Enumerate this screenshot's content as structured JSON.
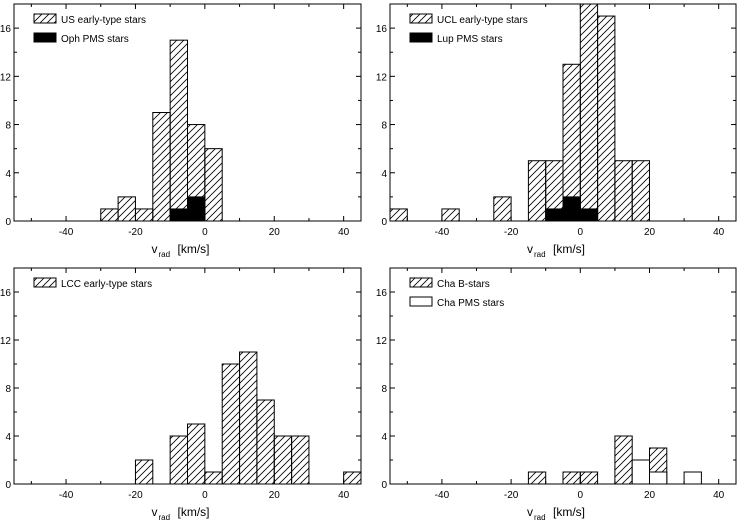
{
  "chart_data": [
    {
      "type": "bar",
      "panel": "top-left",
      "xlim": [
        -55,
        45
      ],
      "ylim": [
        0,
        18
      ],
      "bin_width": 5,
      "xticks": [
        -40,
        -20,
        0,
        20,
        40
      ],
      "yticks": [
        0,
        4,
        8,
        12,
        16
      ],
      "xlabel": "v",
      "xlabel_sub": "rad",
      "xlabel_unit": "[km/s]",
      "legend_position": "top-left",
      "series": [
        {
          "name": "US early-type stars",
          "style": "hatched",
          "bins": [
            [
              -30,
              1
            ],
            [
              -25,
              2
            ],
            [
              -20,
              1
            ],
            [
              -15,
              9
            ],
            [
              -10,
              15
            ],
            [
              -5,
              8
            ],
            [
              0,
              6
            ]
          ]
        },
        {
          "name": "Oph PMS stars",
          "style": "solid",
          "bins": [
            [
              -10,
              1
            ],
            [
              -5,
              2
            ]
          ]
        }
      ]
    },
    {
      "type": "bar",
      "panel": "top-right",
      "xlim": [
        -55,
        45
      ],
      "ylim": [
        0,
        18
      ],
      "bin_width": 5,
      "xticks": [
        -40,
        -20,
        0,
        20,
        40
      ],
      "yticks": [
        0,
        4,
        8,
        12,
        16
      ],
      "xlabel": "v",
      "xlabel_sub": "rad",
      "xlabel_unit": "[km/s]",
      "legend_position": "top-left",
      "series": [
        {
          "name": "UCL early-type stars",
          "style": "hatched",
          "bins": [
            [
              -55,
              1
            ],
            [
              -40,
              1
            ],
            [
              -25,
              2
            ],
            [
              -15,
              5
            ],
            [
              -10,
              5
            ],
            [
              -5,
              13
            ],
            [
              0,
              18
            ],
            [
              5,
              17
            ],
            [
              10,
              5
            ],
            [
              15,
              5
            ]
          ]
        },
        {
          "name": "Lup PMS stars",
          "style": "solid",
          "bins": [
            [
              -10,
              1
            ],
            [
              -5,
              2
            ],
            [
              0,
              1
            ]
          ]
        }
      ]
    },
    {
      "type": "bar",
      "panel": "bottom-left",
      "xlim": [
        -55,
        45
      ],
      "ylim": [
        0,
        18
      ],
      "bin_width": 5,
      "xticks": [
        -40,
        -20,
        0,
        20,
        40
      ],
      "yticks": [
        0,
        4,
        8,
        12,
        16
      ],
      "xlabel": "v",
      "xlabel_sub": "rad",
      "xlabel_unit": "[km/s]",
      "legend_position": "top-left",
      "series": [
        {
          "name": "LCC early-type stars",
          "style": "hatched",
          "bins": [
            [
              -20,
              2
            ],
            [
              -10,
              4
            ],
            [
              -5,
              5
            ],
            [
              0,
              1
            ],
            [
              5,
              10
            ],
            [
              10,
              11
            ],
            [
              15,
              7
            ],
            [
              20,
              4
            ],
            [
              25,
              4
            ],
            [
              40,
              1
            ]
          ]
        }
      ]
    },
    {
      "type": "bar",
      "panel": "bottom-right",
      "xlim": [
        -55,
        45
      ],
      "ylim": [
        0,
        18
      ],
      "bin_width": 5,
      "xticks": [
        -40,
        -20,
        0,
        20,
        40
      ],
      "yticks": [
        0,
        4,
        8,
        12,
        16
      ],
      "xlabel": "v",
      "xlabel_sub": "rad",
      "xlabel_unit": "[km/s]",
      "legend_position": "top-left",
      "series": [
        {
          "name": "Cha B-stars",
          "style": "hatched",
          "bins": [
            [
              -15,
              1
            ],
            [
              -5,
              1
            ],
            [
              0,
              1
            ],
            [
              10,
              4
            ],
            [
              20,
              3
            ]
          ]
        },
        {
          "name": "Cha PMS stars",
          "style": "open",
          "bins": [
            [
              15,
              2
            ],
            [
              20,
              1
            ],
            [
              30,
              1
            ]
          ]
        }
      ]
    }
  ]
}
